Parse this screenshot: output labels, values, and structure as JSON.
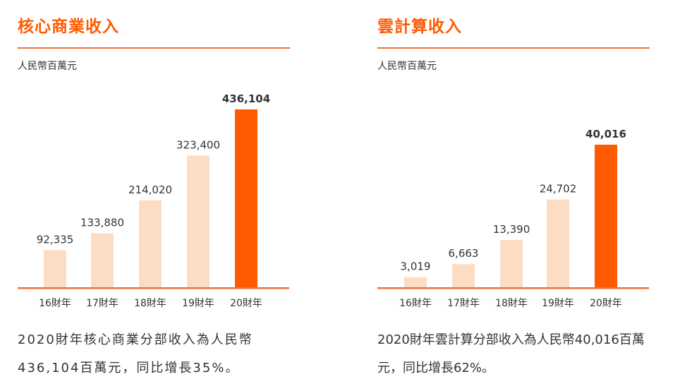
{
  "chart_data": [
    {
      "type": "bar",
      "title": "核心商業收入",
      "unit": "人民幣百萬元",
      "categories": [
        "16財年",
        "17財年",
        "18財年",
        "19財年",
        "20財年"
      ],
      "values": [
        92335,
        133880,
        214020,
        323400,
        436104
      ],
      "labels": [
        "92,335",
        "133,880",
        "214,020",
        "323,400",
        "436,104"
      ],
      "colors": {
        "bar": "#fddcc4",
        "highlight": "#ff5a00",
        "axis": "#f07030"
      },
      "description": "2020財年核心商業分部收入為人民幣436,104百萬元，同比增長35%。"
    },
    {
      "type": "bar",
      "title": "雲計算收入",
      "unit": "人民幣百萬元",
      "categories": [
        "16財年",
        "17財年",
        "18財年",
        "19財年",
        "20財年"
      ],
      "values": [
        3019,
        6663,
        13390,
        24702,
        40016
      ],
      "labels": [
        "3,019",
        "6,663",
        "13,390",
        "24,702",
        "40,016"
      ],
      "colors": {
        "bar": "#fddcc4",
        "highlight": "#ff5a00",
        "axis": "#f07030"
      },
      "description": "2020財年雲計算分部收入為人民幣40,016百萬元，同比增長62%。"
    }
  ]
}
